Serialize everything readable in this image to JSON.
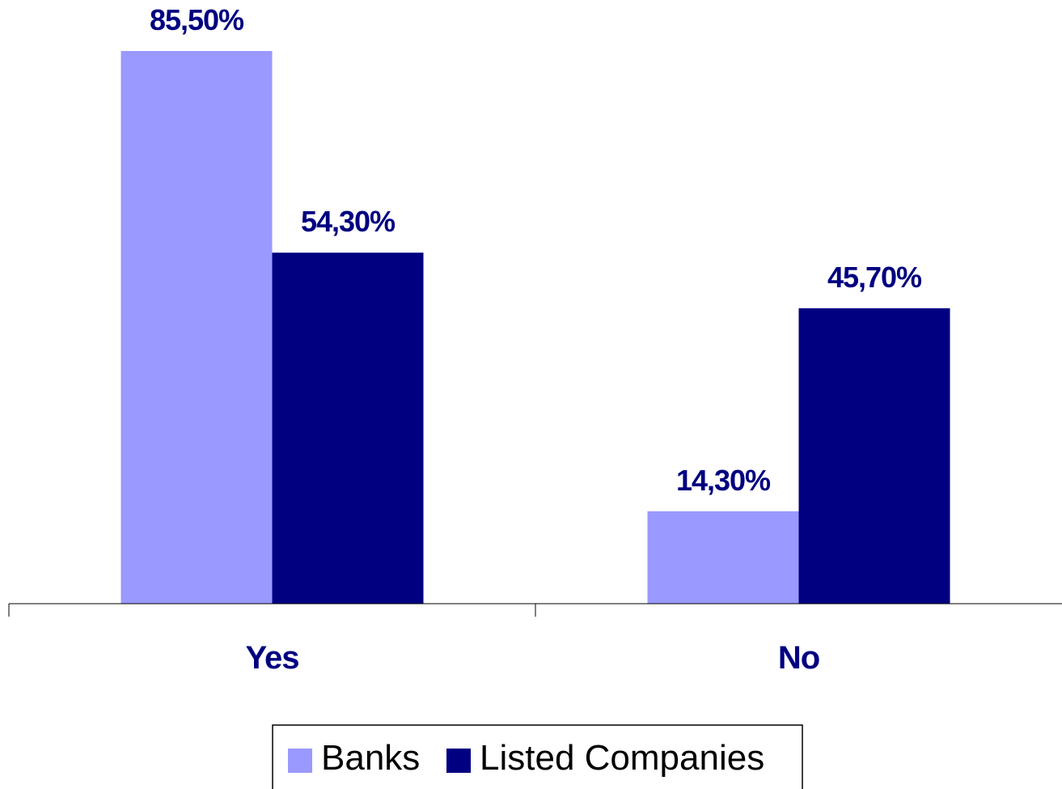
{
  "chart_data": {
    "type": "bar",
    "categories": [
      "Yes",
      "No"
    ],
    "series": [
      {
        "name": "Banks",
        "values": [
          85.5,
          14.3
        ],
        "labels": [
          "85,50%",
          "14,30%"
        ],
        "color": "#9999FF"
      },
      {
        "name": "Listed Companies",
        "values": [
          54.3,
          45.7
        ],
        "labels": [
          "54,30%",
          "45,70%"
        ],
        "color": "#000080"
      }
    ],
    "ylim": [
      0,
      85.5
    ],
    "grid": false,
    "legend_position": "bottom",
    "label_color": "#000080"
  }
}
